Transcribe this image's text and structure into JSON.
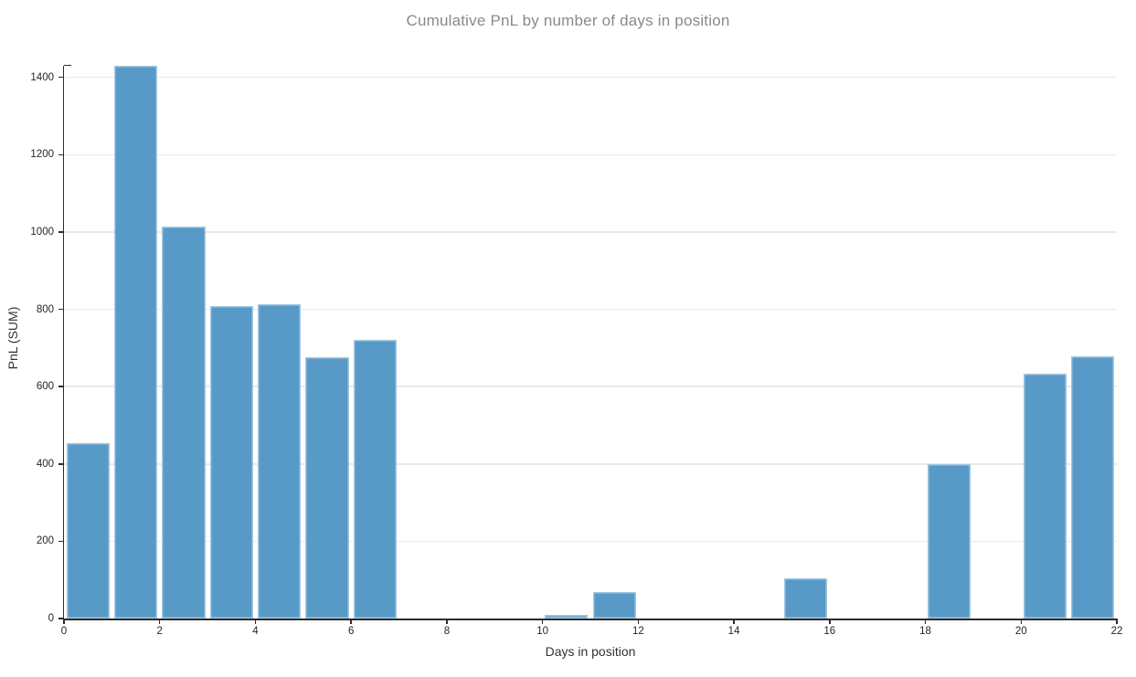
{
  "chart_data": {
    "type": "bar",
    "title": "Cumulative PnL by number of days in position",
    "xlabel": "Days in position",
    "ylabel": "PnL (SUM)",
    "bin_width": 1,
    "bin_starts": [
      0,
      1,
      2,
      3,
      4,
      5,
      6,
      7,
      8,
      9,
      10,
      11,
      12,
      13,
      14,
      15,
      16,
      17,
      18,
      19,
      20,
      21
    ],
    "values": [
      455,
      1430,
      1015,
      808,
      812,
      675,
      720,
      0,
      0,
      0,
      9,
      68,
      0,
      0,
      0,
      105,
      0,
      0,
      400,
      0,
      633,
      678
    ],
    "xticks": [
      0,
      2,
      4,
      6,
      8,
      10,
      12,
      14,
      16,
      18,
      20,
      22
    ],
    "yticks": [
      0,
      200,
      400,
      600,
      800,
      1000,
      1200,
      1400
    ],
    "xlim": [
      0,
      22
    ],
    "ylim": [
      0,
      1430
    ],
    "grid": "horizontal-only",
    "legend": "none"
  },
  "colors": {
    "bar_fill": "#5799c7",
    "bar_edge": "rgba(255,255,255,0.45)",
    "axis_line": "#2b2b2b",
    "tick_label": "#262626",
    "grid_line": "#e9e9e9",
    "title": "#898989",
    "axis_title": "#333333",
    "background": "#ffffff"
  }
}
